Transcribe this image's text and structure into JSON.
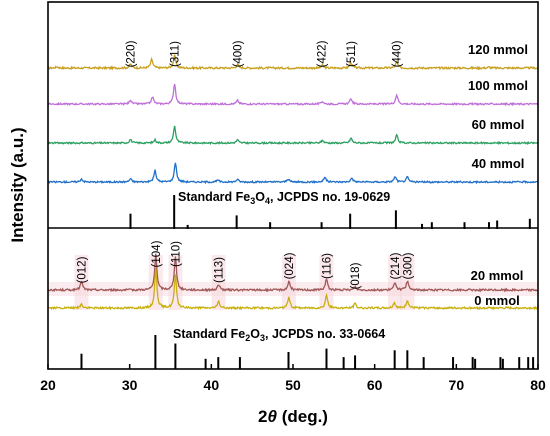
{
  "chart_data": {
    "type": "line",
    "xlabel_prefix": "2",
    "xlabel_theta": "θ",
    "xlabel_suffix": " (deg.)",
    "ylabel": "Intensity (a.u.)",
    "xlim": [
      20,
      80
    ],
    "xticks": [
      "20",
      "30",
      "40",
      "50",
      "60",
      "70",
      "80"
    ],
    "grid": false,
    "upper_panel": {
      "series": [
        {
          "name": "120 mmol",
          "color": "#C8A020",
          "noise": 0.6,
          "peaks": [
            [
              21.1,
              0.15
            ],
            [
              30.1,
              0.45
            ],
            [
              32.7,
              0.95
            ],
            [
              35.5,
              1.4
            ],
            [
              43.2,
              0.4
            ],
            [
              53.6,
              0.3
            ],
            [
              57.1,
              0.6
            ],
            [
              62.7,
              0.65
            ],
            [
              74.0,
              0.1
            ]
          ]
        },
        {
          "name": "100 mmol",
          "color": "#C070D8",
          "noise": 0.5,
          "peaks": [
            [
              30.1,
              0.45
            ],
            [
              32.8,
              0.8
            ],
            [
              35.5,
              2.3
            ],
            [
              43.2,
              0.4
            ],
            [
              53.6,
              0.3
            ],
            [
              57.1,
              0.6
            ],
            [
              62.7,
              1.05
            ]
          ]
        },
        {
          "name": "60 mmol",
          "color": "#2CA060",
          "noise": 0.5,
          "peaks": [
            [
              30.1,
              0.4
            ],
            [
              33.1,
              0.35
            ],
            [
              35.5,
              1.9
            ],
            [
              43.2,
              0.35
            ],
            [
              53.6,
              0.3
            ],
            [
              57.1,
              0.55
            ],
            [
              62.7,
              0.85
            ]
          ]
        },
        {
          "name": "40 mmol",
          "color": "#2070C8",
          "noise": 0.5,
          "peaks": [
            [
              24.1,
              0.35
            ],
            [
              30.1,
              0.35
            ],
            [
              33.1,
              1.3
            ],
            [
              35.6,
              2.2
            ],
            [
              40.8,
              0.2
            ],
            [
              43.2,
              0.3
            ],
            [
              49.4,
              0.35
            ],
            [
              53.9,
              0.55
            ],
            [
              57.2,
              0.45
            ],
            [
              62.5,
              0.6
            ],
            [
              64.0,
              0.55
            ]
          ]
        }
      ],
      "peak_labels": [
        {
          "text": "(220)",
          "x": 30.1
        },
        {
          "text": "(311)",
          "x": 35.5
        },
        {
          "text": "(400)",
          "x": 43.2
        },
        {
          "text": "(422)",
          "x": 53.5
        },
        {
          "text": "(511)",
          "x": 57.1
        },
        {
          "text": "(440)",
          "x": 62.7
        }
      ],
      "reference": {
        "prefix": "Standard Fe",
        "sub1": "3",
        "mid": "O",
        "sub2": "4",
        "suffix": ", JCPDS no. 19-0629",
        "lines": [
          [
            30.1,
            0.45
          ],
          [
            35.45,
            1.0
          ],
          [
            37.1,
            0.12
          ],
          [
            43.1,
            0.4
          ],
          [
            47.2,
            0.2
          ],
          [
            53.5,
            0.2
          ],
          [
            57.0,
            0.45
          ],
          [
            62.6,
            0.55
          ],
          [
            65.8,
            0.15
          ],
          [
            67.0,
            0.2
          ],
          [
            71.0,
            0.2
          ],
          [
            74.0,
            0.2
          ],
          [
            75.0,
            0.25
          ],
          [
            79.0,
            0.3
          ]
        ]
      }
    },
    "lower_panel": {
      "series": [
        {
          "name": "20 mmol",
          "color": "#A05858",
          "noise": 0.5,
          "peaks": [
            [
              24.1,
              0.8
            ],
            [
              33.2,
              3.2
            ],
            [
              35.6,
              3.1
            ],
            [
              40.9,
              0.5
            ],
            [
              49.5,
              0.8
            ],
            [
              54.1,
              1.0
            ],
            [
              57.6,
              0.3
            ],
            [
              62.5,
              0.7
            ],
            [
              64.0,
              0.8
            ]
          ]
        },
        {
          "name": "0 mmol",
          "color": "#C8B010",
          "noise": 0.5,
          "peaks": [
            [
              24.1,
              0.35
            ],
            [
              33.2,
              3.6
            ],
            [
              35.6,
              3.0
            ],
            [
              40.9,
              0.6
            ],
            [
              49.5,
              1.0
            ],
            [
              54.1,
              1.2
            ],
            [
              57.6,
              0.4
            ],
            [
              62.4,
              0.5
            ],
            [
              64.0,
              0.7
            ]
          ]
        }
      ],
      "peak_labels": [
        {
          "text": "(012)",
          "x": 24.1
        },
        {
          "text": "(104)",
          "x": 33.2
        },
        {
          "text": "(110)",
          "x": 35.6
        },
        {
          "text": "(113)",
          "x": 40.9
        },
        {
          "text": "(024)",
          "x": 49.5
        },
        {
          "text": "(116)",
          "x": 54.1
        },
        {
          "text": "(018)",
          "x": 57.6
        },
        {
          "text": "(214)",
          "x": 62.5
        },
        {
          "text": "(300)",
          "x": 64.0
        }
      ],
      "highlight_bands": [
        24.1,
        33.2,
        35.6,
        40.9,
        49.5,
        54.1,
        62.5,
        64.0
      ],
      "reference": {
        "prefix": "Standard Fe",
        "sub1": "2",
        "mid": "O",
        "sub2": "3",
        "suffix": ", JCPDS no. 33-0664",
        "lines": [
          [
            24.1,
            0.45
          ],
          [
            33.15,
            1.0
          ],
          [
            35.6,
            0.75
          ],
          [
            39.3,
            0.3
          ],
          [
            40.85,
            0.35
          ],
          [
            43.5,
            0.35
          ],
          [
            49.45,
            0.5
          ],
          [
            54.1,
            0.6
          ],
          [
            56.2,
            0.35
          ],
          [
            57.6,
            0.4
          ],
          [
            62.45,
            0.55
          ],
          [
            64.0,
            0.55
          ],
          [
            66.0,
            0.35
          ],
          [
            69.6,
            0.35
          ],
          [
            72.0,
            0.35
          ],
          [
            72.3,
            0.3
          ],
          [
            75.4,
            0.35
          ],
          [
            75.7,
            0.3
          ],
          [
            77.7,
            0.35
          ],
          [
            78.8,
            0.35
          ],
          [
            79.4,
            0.35
          ]
        ]
      }
    }
  }
}
